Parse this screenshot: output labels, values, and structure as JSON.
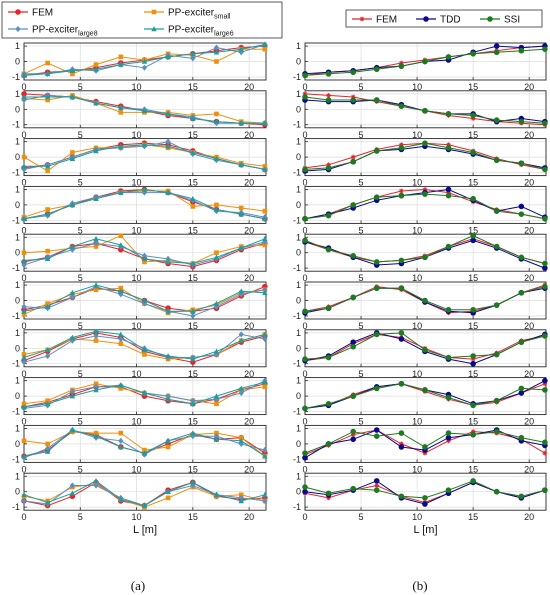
{
  "chart_data": [
    {
      "type": "line",
      "panel": "a",
      "caption": "(a)",
      "xlabel": "L [m]",
      "xlim": [
        0,
        21.5
      ],
      "ylim": [
        -1.2,
        1.2
      ],
      "xticks": [
        0,
        5,
        10,
        15,
        20
      ],
      "yticks": [
        1,
        0,
        -1
      ],
      "legend": [
        {
          "base": "FEM",
          "sub": "",
          "color": "#e8232b",
          "marker": "circle"
        },
        {
          "base": "PP-exciter",
          "sub": "small",
          "color": "#f0900a",
          "marker": "square"
        },
        {
          "base": "PP-exciter",
          "sub": "large8",
          "color": "#5b8fc4",
          "marker": "diamond"
        },
        {
          "base": "PP-exciter",
          "sub": "large6",
          "color": "#1a9e9e",
          "marker": "triangle"
        }
      ],
      "x": [
        0,
        2.1,
        4.3,
        6.4,
        8.6,
        10.7,
        12.8,
        15.0,
        17.1,
        19.3,
        21.4
      ],
      "modes": [
        [
          [
            -0.9,
            -0.7,
            -0.6,
            -0.4,
            -0.1,
            0.1,
            0.3,
            0.5,
            0.7,
            0.9,
            1.0
          ],
          [
            -0.8,
            -0.1,
            -0.8,
            -0.2,
            0.3,
            0.1,
            0.5,
            0.4,
            0.0,
            0.8,
            0.8
          ],
          [
            -0.8,
            -0.8,
            -0.5,
            -0.6,
            -0.2,
            -0.4,
            0.4,
            0.2,
            0.9,
            0.6,
            1.1
          ],
          [
            -0.9,
            -0.8,
            -0.6,
            -0.5,
            -0.2,
            0.0,
            0.3,
            0.5,
            0.6,
            0.8,
            1.1
          ]
        ],
        [
          [
            1.0,
            0.9,
            0.8,
            0.5,
            0.2,
            -0.1,
            -0.4,
            -0.6,
            -0.8,
            -0.9,
            -1.0
          ],
          [
            0.7,
            0.6,
            0.9,
            0.4,
            -0.2,
            -0.2,
            -0.2,
            -0.4,
            -0.3,
            -0.8,
            -0.9
          ],
          [
            0.6,
            0.9,
            0.8,
            0.4,
            0.1,
            0.0,
            -0.3,
            -0.5,
            -0.9,
            -0.9,
            -0.9
          ],
          [
            0.8,
            0.8,
            0.8,
            0.4,
            0.1,
            -0.1,
            -0.3,
            -0.6,
            -0.8,
            -0.9,
            -0.9
          ]
        ],
        [
          [
            -0.7,
            -0.5,
            0.0,
            0.5,
            0.8,
            0.9,
            0.8,
            0.4,
            -0.1,
            -0.5,
            -0.8
          ],
          [
            0.0,
            -0.9,
            0.3,
            0.6,
            0.6,
            0.8,
            0.6,
            0.3,
            0.0,
            -0.4,
            -0.6
          ],
          [
            -0.8,
            -0.5,
            0.0,
            0.5,
            0.6,
            0.7,
            1.0,
            0.2,
            -0.2,
            -0.5,
            -0.8
          ],
          [
            -0.6,
            -0.6,
            -0.1,
            0.4,
            0.7,
            0.8,
            0.7,
            0.3,
            -0.1,
            -0.5,
            -0.8
          ]
        ],
        [
          [
            -0.9,
            -0.6,
            0.0,
            0.5,
            0.9,
            1.0,
            0.8,
            0.2,
            -0.3,
            -0.6,
            -0.9
          ],
          [
            -0.8,
            -0.3,
            0.0,
            0.4,
            0.8,
            0.9,
            0.9,
            -0.1,
            0.0,
            -0.2,
            -0.4
          ],
          [
            -0.9,
            -0.7,
            0.1,
            0.5,
            0.8,
            0.8,
            0.8,
            0.3,
            -0.4,
            -0.5,
            -0.8
          ],
          [
            -0.9,
            -0.6,
            0.0,
            0.4,
            0.8,
            1.0,
            0.8,
            0.4,
            -0.3,
            -0.6,
            -0.9
          ]
        ],
        [
          [
            -0.6,
            -0.3,
            0.4,
            0.6,
            0.2,
            -0.4,
            -0.7,
            -0.9,
            -0.5,
            0.2,
            0.6
          ],
          [
            0.0,
            0.1,
            0.3,
            0.4,
            1.1,
            -0.6,
            -0.5,
            -0.7,
            0.0,
            0.4,
            0.5
          ],
          [
            -0.8,
            -0.3,
            0.2,
            0.6,
            0.4,
            -0.2,
            -0.4,
            -0.8,
            -0.4,
            0.3,
            0.7
          ],
          [
            -0.5,
            -0.4,
            0.4,
            0.9,
            0.5,
            -0.4,
            -0.6,
            -0.7,
            -0.3,
            0.3,
            0.9
          ]
        ],
        [
          [
            -0.6,
            -0.3,
            0.2,
            0.8,
            0.6,
            0.0,
            -0.5,
            -0.7,
            -0.5,
            0.3,
            0.9
          ],
          [
            -0.9,
            -0.2,
            0.4,
            0.7,
            0.8,
            -0.2,
            -0.8,
            -0.6,
            -0.3,
            0.5,
            0.7
          ],
          [
            -0.4,
            -0.5,
            0.2,
            0.9,
            0.4,
            -0.2,
            -0.7,
            -1.0,
            -0.4,
            0.4,
            0.7
          ],
          [
            -0.7,
            -0.4,
            0.5,
            1.0,
            0.6,
            0.0,
            -0.7,
            -0.7,
            -0.2,
            0.6,
            0.5
          ]
        ],
        [
          [
            -0.8,
            -0.2,
            0.6,
            1.0,
            0.7,
            -0.2,
            -0.6,
            -0.9,
            -0.4,
            0.4,
            0.8
          ],
          [
            -0.4,
            -0.1,
            0.6,
            0.5,
            0.3,
            -0.4,
            -0.7,
            -0.6,
            -0.4,
            0.5,
            0.9
          ],
          [
            -0.9,
            -0.5,
            0.5,
            0.8,
            0.6,
            0.0,
            -0.6,
            -0.6,
            -0.4,
            0.9,
            0.6
          ],
          [
            -0.6,
            -0.1,
            0.7,
            1.1,
            0.9,
            -0.1,
            -0.5,
            -0.7,
            -0.2,
            0.5,
            0.9
          ]
        ],
        [
          [
            -0.7,
            -0.4,
            0.1,
            0.6,
            0.6,
            0.0,
            -0.3,
            -0.5,
            -0.2,
            0.4,
            0.8
          ],
          [
            -0.5,
            -0.3,
            0.4,
            0.8,
            0.5,
            0.2,
            0.0,
            -0.3,
            -0.5,
            0.4,
            0.6
          ],
          [
            -0.8,
            -0.6,
            0.3,
            0.6,
            0.7,
            0.2,
            0.0,
            -0.3,
            -0.2,
            0.2,
            1.0
          ],
          [
            -0.7,
            -0.5,
            0.0,
            0.4,
            0.7,
            0.2,
            -0.2,
            -0.5,
            0.0,
            0.5,
            0.9
          ]
        ],
        [
          [
            -0.8,
            -0.4,
            0.8,
            0.6,
            -0.2,
            -0.6,
            0.0,
            0.6,
            0.3,
            0.4,
            -0.6
          ],
          [
            0.2,
            0.0,
            0.8,
            0.7,
            0.7,
            -0.4,
            -0.2,
            0.6,
            0.7,
            0.4,
            -0.8
          ],
          [
            -0.9,
            -0.3,
            0.9,
            0.4,
            0.2,
            -0.7,
            0.2,
            0.5,
            0.5,
            0.0,
            -0.4
          ],
          [
            -0.8,
            -0.5,
            0.9,
            0.5,
            -0.2,
            -0.6,
            0.2,
            0.7,
            0.3,
            0.2,
            -0.8
          ]
        ],
        [
          [
            -0.6,
            -0.9,
            -0.3,
            0.6,
            -0.6,
            -0.9,
            0.1,
            0.6,
            -0.3,
            -0.5,
            -0.4
          ],
          [
            -0.3,
            -0.6,
            0.3,
            0.5,
            -0.5,
            -1.0,
            -0.4,
            0.3,
            -0.3,
            -0.2,
            -0.6
          ],
          [
            -0.6,
            -0.8,
            0.4,
            0.4,
            -0.4,
            -0.9,
            0.0,
            0.4,
            -0.2,
            -0.4,
            -0.6
          ],
          [
            -0.2,
            -0.7,
            -0.1,
            0.7,
            -0.5,
            -0.9,
            0.0,
            0.6,
            -0.2,
            -0.6,
            -0.2
          ]
        ]
      ]
    },
    {
      "type": "line",
      "panel": "b",
      "caption": "(b)",
      "xlabel": "L [m]",
      "xlim": [
        0,
        21.5
      ],
      "ylim": [
        -1.2,
        1.2
      ],
      "xticks": [
        0,
        5,
        10,
        15,
        20
      ],
      "yticks": [
        1,
        0,
        -1
      ],
      "legend": [
        {
          "base": "FEM",
          "sub": "",
          "color": "#e8232b",
          "marker": "star"
        },
        {
          "base": "TDD",
          "sub": "",
          "color": "#0a0a8a",
          "marker": "circle"
        },
        {
          "base": "SSI",
          "sub": "",
          "color": "#1e7a1e",
          "marker": "circle"
        }
      ],
      "x": [
        0,
        2.1,
        4.3,
        6.4,
        8.6,
        10.7,
        12.8,
        15.0,
        17.1,
        19.3,
        21.4
      ],
      "modes": [
        [
          [
            -0.9,
            -0.7,
            -0.6,
            -0.4,
            -0.1,
            0.1,
            0.3,
            0.5,
            0.7,
            0.9,
            1.0
          ],
          [
            -0.8,
            -0.7,
            -0.6,
            -0.4,
            -0.3,
            0.0,
            0.1,
            0.6,
            1.0,
            0.9,
            1.0
          ],
          [
            -0.9,
            -0.8,
            -0.7,
            -0.5,
            -0.3,
            0.0,
            0.3,
            0.5,
            0.6,
            0.7,
            0.8
          ]
        ],
        [
          [
            1.0,
            0.9,
            0.8,
            0.5,
            0.2,
            -0.1,
            -0.4,
            -0.6,
            -0.8,
            -0.9,
            -1.0
          ],
          [
            0.6,
            0.5,
            0.5,
            0.6,
            0.3,
            -0.1,
            -0.3,
            -0.3,
            -0.8,
            -0.6,
            -0.8
          ],
          [
            0.8,
            0.6,
            0.6,
            0.6,
            0.2,
            -0.1,
            -0.3,
            -0.4,
            -0.7,
            -0.8,
            -0.9
          ]
        ],
        [
          [
            -0.7,
            -0.5,
            0.0,
            0.5,
            0.8,
            0.9,
            0.8,
            0.4,
            -0.1,
            -0.5,
            -0.8
          ],
          [
            -0.9,
            -0.8,
            -0.3,
            0.4,
            0.5,
            0.7,
            0.5,
            0.2,
            -0.2,
            -0.4,
            -0.7
          ],
          [
            -0.8,
            -0.7,
            -0.3,
            0.4,
            0.6,
            0.9,
            0.6,
            0.3,
            -0.2,
            -0.4,
            -0.8
          ]
        ],
        [
          [
            -0.9,
            -0.6,
            0.0,
            0.5,
            0.9,
            1.0,
            0.8,
            0.2,
            -0.3,
            -0.6,
            -0.9
          ],
          [
            -0.9,
            -0.6,
            -0.2,
            0.3,
            0.6,
            0.8,
            1.0,
            0.3,
            -0.4,
            -0.1,
            -0.8
          ],
          [
            -0.9,
            -0.7,
            0.0,
            0.5,
            0.6,
            0.7,
            0.6,
            0.4,
            -0.4,
            -0.6,
            -0.9
          ]
        ],
        [
          [
            0.7,
            0.2,
            -0.3,
            -0.6,
            -0.5,
            -0.2,
            0.4,
            0.9,
            0.4,
            -0.3,
            -0.7
          ],
          [
            0.7,
            0.3,
            -0.3,
            -0.8,
            -0.7,
            -0.3,
            0.3,
            0.8,
            0.3,
            -0.4,
            -1.0
          ],
          [
            0.8,
            0.2,
            -0.2,
            -0.6,
            -0.5,
            -0.3,
            0.4,
            1.1,
            0.4,
            -0.3,
            -0.7
          ]
        ],
        [
          [
            -0.7,
            -0.4,
            0.2,
            0.9,
            0.7,
            -0.1,
            -0.8,
            -0.7,
            -0.3,
            0.5,
            1.0
          ],
          [
            -0.8,
            -0.5,
            0.2,
            0.8,
            0.8,
            -0.1,
            -0.7,
            -0.8,
            -0.3,
            0.5,
            0.8
          ],
          [
            -0.7,
            -0.5,
            0.2,
            0.8,
            0.8,
            0.0,
            -0.6,
            -0.6,
            -0.3,
            0.5,
            0.9
          ]
        ],
        [
          [
            -0.8,
            -0.6,
            0.3,
            0.9,
            0.7,
            0.0,
            -0.6,
            -0.7,
            -0.3,
            0.5,
            0.8
          ],
          [
            -0.8,
            -0.5,
            0.4,
            1.0,
            0.6,
            -0.2,
            -0.7,
            -1.0,
            -0.4,
            0.4,
            0.9
          ],
          [
            -0.7,
            -0.6,
            0.1,
            0.9,
            1.0,
            -0.1,
            -0.6,
            -0.5,
            -0.4,
            0.4,
            0.8
          ]
        ],
        [
          [
            -0.8,
            -0.6,
            0.1,
            0.6,
            0.8,
            0.3,
            -0.2,
            -0.6,
            -0.4,
            0.2,
            0.8
          ],
          [
            -0.8,
            -0.6,
            0.0,
            0.6,
            0.8,
            0.4,
            0.1,
            -0.5,
            -0.3,
            0.2,
            1.0
          ],
          [
            -0.8,
            -0.5,
            0.0,
            0.5,
            0.8,
            0.4,
            -0.1,
            -0.6,
            -0.3,
            0.5,
            0.4
          ]
        ],
        [
          [
            -0.7,
            -0.1,
            0.6,
            0.9,
            0.0,
            -0.6,
            0.2,
            0.8,
            0.7,
            0.3,
            -0.6
          ],
          [
            -0.9,
            0.0,
            0.3,
            0.9,
            -0.2,
            -0.4,
            0.4,
            0.6,
            0.9,
            0.2,
            -0.1
          ],
          [
            -0.6,
            0.0,
            0.8,
            0.5,
            0.7,
            -0.2,
            0.7,
            0.6,
            0.8,
            0.4,
            0.1
          ]
        ],
        [
          [
            -0.1,
            -0.4,
            0.1,
            0.4,
            -0.3,
            -0.7,
            -0.1,
            0.6,
            0.0,
            -0.4,
            0.1
          ],
          [
            0.0,
            -0.2,
            0.1,
            0.7,
            -0.4,
            -0.8,
            -0.1,
            0.6,
            0.0,
            -0.4,
            0.1
          ],
          [
            0.3,
            -0.1,
            0.2,
            0.1,
            -0.3,
            -0.4,
            0.1,
            0.7,
            0.0,
            -0.3,
            0.1
          ]
        ]
      ]
    }
  ]
}
